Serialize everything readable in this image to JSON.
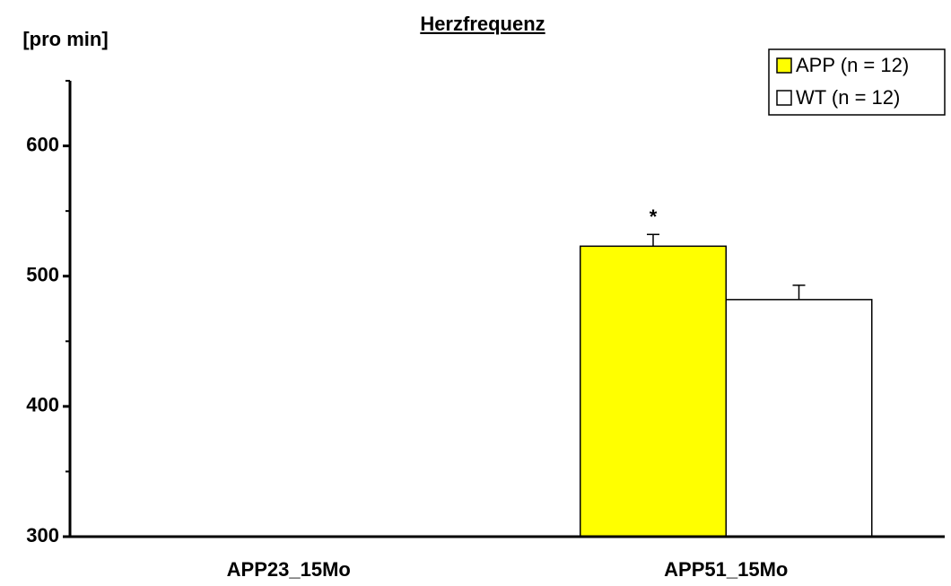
{
  "chart_data": {
    "type": "bar",
    "title": "Herzfrequenz",
    "y_label": "[pro min]",
    "categories": [
      "APP23_15Mo",
      "APP51_15Mo"
    ],
    "series": [
      {
        "name": "APP (n = 12)",
        "color": "#ffff00",
        "values": [
          null,
          523
        ],
        "errors": [
          null,
          9
        ]
      },
      {
        "name": "WT (n = 12)",
        "color": "#ffffff",
        "values": [
          null,
          482
        ],
        "errors": [
          null,
          11
        ]
      }
    ],
    "annotations": [
      {
        "text": "*",
        "category": 1,
        "series": 0
      }
    ],
    "ylim": [
      300,
      650
    ],
    "yticks": [
      300,
      400,
      500,
      600
    ],
    "minor_yticks": [
      350,
      450,
      550,
      650
    ],
    "grid": false,
    "legend": "top-right"
  }
}
